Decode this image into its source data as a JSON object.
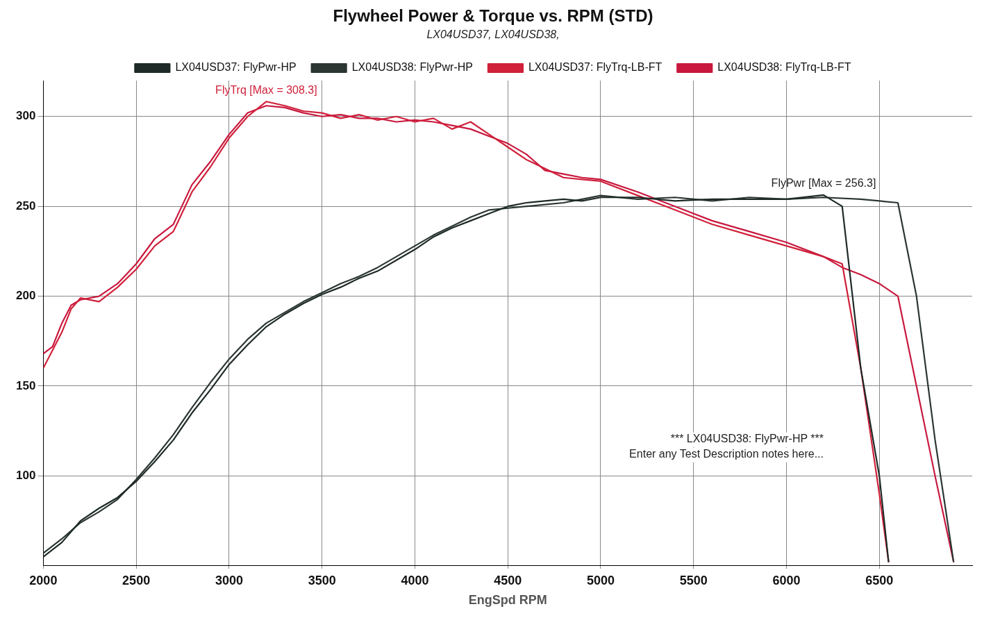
{
  "chart_data": {
    "type": "line",
    "title": "Flywheel Power & Torque vs. RPM (STD)",
    "subtitle": "LX04USD37, LX04USD38,",
    "xlabel": "EngSpd RPM",
    "xlim": [
      2000,
      7000
    ],
    "xticks": [
      2000,
      2500,
      3000,
      3500,
      4000,
      4500,
      5000,
      5500,
      6000,
      6500
    ],
    "ylim": [
      50,
      320
    ],
    "yticks": [
      100,
      150,
      200,
      250,
      300
    ],
    "grid": true,
    "legend": "top",
    "marker": "none",
    "line_style": "solid",
    "series": [
      {
        "name": "LX04USD37: FlyPwr-HP",
        "color": "#1e2a28",
        "x": [
          2000,
          2100,
          2200,
          2300,
          2400,
          2500,
          2600,
          2700,
          2800,
          2900,
          3000,
          3100,
          3200,
          3300,
          3400,
          3500,
          3600,
          3700,
          3800,
          3900,
          4000,
          4100,
          4200,
          4300,
          4400,
          4500,
          4600,
          4700,
          4800,
          4900,
          5000,
          5200,
          5400,
          5600,
          5800,
          6000,
          6200,
          6300,
          6400,
          6500,
          6550
        ],
        "values": [
          55,
          63,
          75,
          82,
          88,
          97,
          108,
          120,
          135,
          148,
          162,
          173,
          183,
          190,
          196,
          201,
          205,
          210,
          214,
          220,
          226,
          233,
          238,
          242,
          246,
          250,
          252,
          253,
          254,
          253,
          255,
          255,
          253,
          254,
          254,
          254,
          256.3,
          250,
          160,
          100,
          52
        ]
      },
      {
        "name": "LX04USD38: FlyPwr-HP",
        "color": "#2b3633",
        "x": [
          2000,
          2100,
          2200,
          2300,
          2400,
          2500,
          2600,
          2700,
          2800,
          2900,
          3000,
          3100,
          3200,
          3300,
          3400,
          3500,
          3600,
          3700,
          3800,
          3900,
          4000,
          4100,
          4200,
          4300,
          4400,
          4500,
          4600,
          4700,
          4800,
          4900,
          5000,
          5200,
          5400,
          5600,
          5800,
          6000,
          6200,
          6400,
          6600,
          6700,
          6800,
          6900
        ],
        "values": [
          57,
          65,
          74,
          80,
          87,
          98,
          110,
          123,
          138,
          152,
          165,
          176,
          185,
          191,
          197,
          202,
          207,
          211,
          216,
          222,
          228,
          234,
          239,
          244,
          248,
          249,
          250,
          251,
          252,
          254,
          256,
          254,
          255,
          253,
          255,
          254,
          255,
          254,
          252,
          200,
          120,
          52
        ]
      },
      {
        "name": "LX04USD37: FlyTrq-LB-FT",
        "color": "#d0203a",
        "x": [
          2000,
          2050,
          2100,
          2150,
          2200,
          2300,
          2400,
          2500,
          2600,
          2700,
          2800,
          2900,
          3000,
          3100,
          3200,
          3300,
          3400,
          3500,
          3600,
          3700,
          3800,
          3900,
          4000,
          4100,
          4200,
          4300,
          4400,
          4500,
          4600,
          4700,
          4800,
          4900,
          5000,
          5200,
          5400,
          5600,
          5800,
          6000,
          6100,
          6200,
          6300,
          6400,
          6500,
          6550
        ],
        "values": [
          160,
          170,
          180,
          193,
          199,
          197,
          205,
          215,
          228,
          236,
          258,
          272,
          288,
          300,
          308.3,
          306,
          303,
          302,
          299,
          301,
          298,
          300,
          297,
          299,
          293,
          297,
          290,
          283,
          276,
          271,
          266,
          265,
          264,
          256,
          248,
          240,
          234,
          228,
          225,
          222,
          218,
          160,
          90,
          52
        ]
      },
      {
        "name": "LX04USD38: FlyTrq-LB-FT",
        "color": "#c8183e",
        "x": [
          2000,
          2050,
          2100,
          2150,
          2200,
          2300,
          2400,
          2500,
          2600,
          2700,
          2800,
          2900,
          3000,
          3100,
          3200,
          3300,
          3400,
          3500,
          3600,
          3700,
          3800,
          3900,
          4000,
          4100,
          4200,
          4300,
          4400,
          4500,
          4600,
          4700,
          4800,
          4900,
          5000,
          5200,
          5400,
          5600,
          5800,
          6000,
          6200,
          6300,
          6400,
          6500,
          6600,
          6700,
          6800,
          6900
        ],
        "values": [
          168,
          172,
          185,
          195,
          198,
          200,
          207,
          218,
          232,
          240,
          262,
          275,
          290,
          302,
          306,
          305,
          302,
          300,
          301,
          299,
          299,
          297,
          298,
          297,
          295,
          293,
          289,
          285,
          279,
          270,
          268,
          266,
          265,
          258,
          250,
          242,
          236,
          230,
          222,
          216,
          212,
          207,
          200,
          150,
          100,
          52
        ]
      }
    ],
    "annotations": [
      {
        "text": "FlyTrq [Max = 308.3]",
        "x": 3200,
        "y": 308.3
      },
      {
        "text": "FlyPwr [Max = 256.3]",
        "x": 6200,
        "y": 256.3
      },
      "*** LX04USD38: FlyPwr-HP ***",
      "Enter any Test Description notes here..."
    ]
  }
}
